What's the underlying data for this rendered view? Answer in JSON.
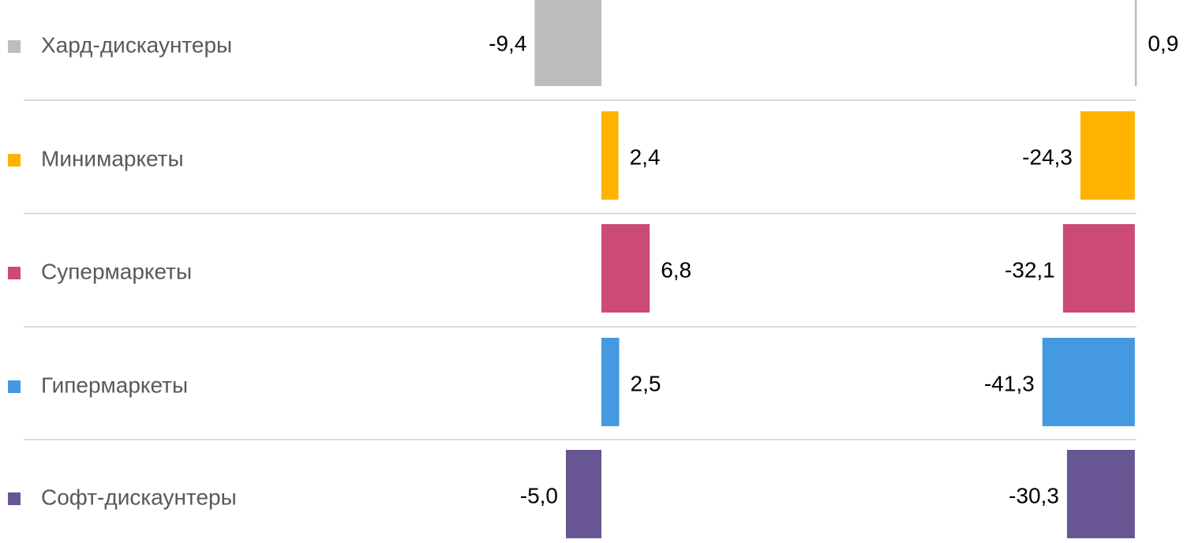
{
  "chart_data": {
    "type": "bar",
    "orientation": "horizontal",
    "categories": [
      "Хард-дискаунтеры",
      "Минимаркеты",
      "Супермаркеты",
      "Гипермаркеты",
      "Софт-дискаунтеры"
    ],
    "colors": [
      "#bdbdbd",
      "#ffb300",
      "#cc4a78",
      "#4599e0",
      "#675693"
    ],
    "series": [
      {
        "values": [
          -9.4,
          2.4,
          6.8,
          2.5,
          -5.0
        ],
        "value_labels": [
          "-9,4",
          "2,4",
          "6,8",
          "2,5",
          "-5,0"
        ],
        "xlim": [
          -20,
          15
        ]
      },
      {
        "values": [
          0.9,
          -24.3,
          -32.1,
          -41.3,
          -30.3
        ],
        "value_labels": [
          "0,9",
          "-24,3",
          "-32,1",
          "-41,3",
          "-30,3"
        ],
        "xlim": [
          -50,
          5
        ]
      }
    ]
  }
}
